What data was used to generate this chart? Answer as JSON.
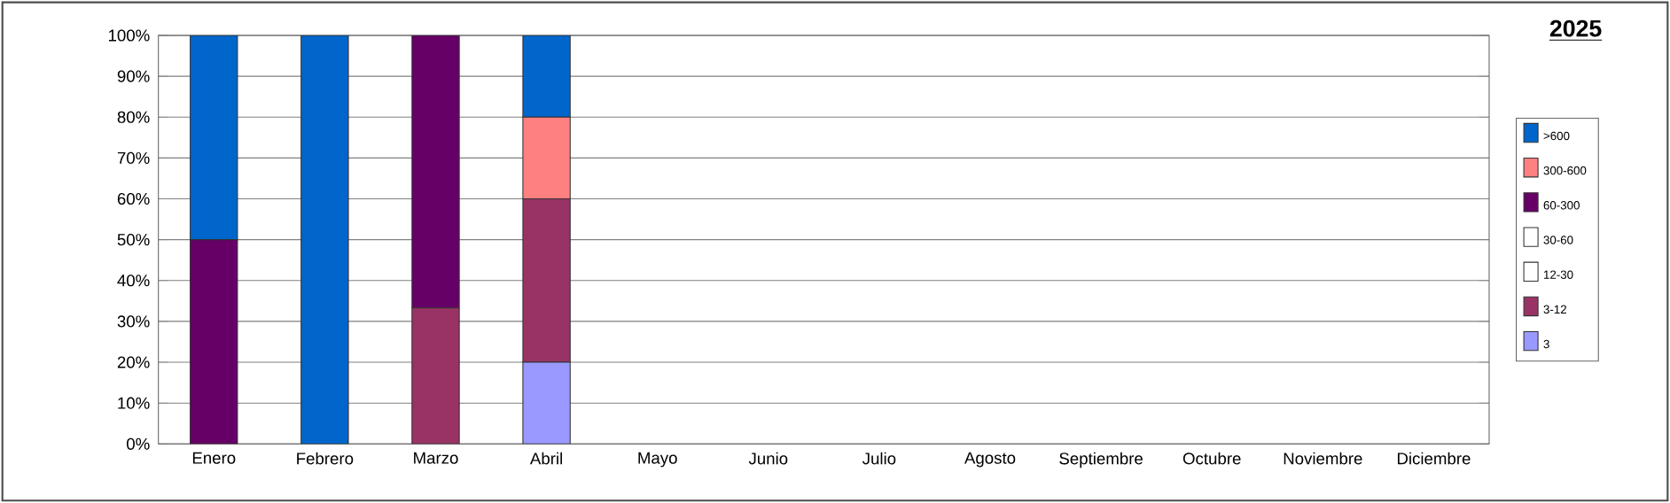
{
  "chart_data": {
    "type": "bar",
    "title": "2025",
    "stacked": true,
    "categories": [
      "Enero",
      "Febrero",
      "Marzo",
      "Abril",
      "Mayo",
      "Junio",
      "Julio",
      "Agosto",
      "Septiembre",
      "Octubre",
      "Noviembre",
      "Diciembre"
    ],
    "series": [
      {
        "name": "3",
        "color": "#9999ff",
        "values": [
          0,
          0,
          0,
          20,
          0,
          0,
          0,
          0,
          0,
          0,
          0,
          0
        ]
      },
      {
        "name": "3-12",
        "color": "#993366",
        "values": [
          0,
          0,
          33.3,
          40,
          0,
          0,
          0,
          0,
          0,
          0,
          0,
          0
        ]
      },
      {
        "name": "12-30",
        "color": "#ffffff",
        "values": [
          0,
          0,
          0,
          0,
          0,
          0,
          0,
          0,
          0,
          0,
          0,
          0
        ]
      },
      {
        "name": "30-60",
        "color": "#ffffff",
        "values": [
          0,
          0,
          0,
          0,
          0,
          0,
          0,
          0,
          0,
          0,
          0,
          0
        ]
      },
      {
        "name": "60-300",
        "color": "#660066",
        "values": [
          50,
          0,
          66.7,
          0,
          0,
          0,
          0,
          0,
          0,
          0,
          0,
          0
        ]
      },
      {
        "name": "300-600",
        "color": "#ff8080",
        "values": [
          0,
          0,
          0,
          20,
          0,
          0,
          0,
          0,
          0,
          0,
          0,
          0
        ]
      },
      {
        "name": ">600",
        "color": "#0066cc",
        "values": [
          50,
          100,
          0,
          20,
          0,
          0,
          0,
          0,
          0,
          0,
          0,
          0
        ]
      }
    ],
    "ylim": [
      0,
      100
    ],
    "yticks": [
      {
        "value": 0,
        "label": "0%"
      },
      {
        "value": 10,
        "label": "10%"
      },
      {
        "value": 20,
        "label": "20%"
      },
      {
        "value": 30,
        "label": "30%"
      },
      {
        "value": 40,
        "label": "40%"
      },
      {
        "value": 50,
        "label": "50%"
      },
      {
        "value": 60,
        "label": "60%"
      },
      {
        "value": 70,
        "label": "70%"
      },
      {
        "value": 80,
        "label": "80%"
      },
      {
        "value": 90,
        "label": "90%"
      },
      {
        "value": 100,
        "label": "100%"
      }
    ],
    "grid": "y",
    "legend": "right"
  }
}
